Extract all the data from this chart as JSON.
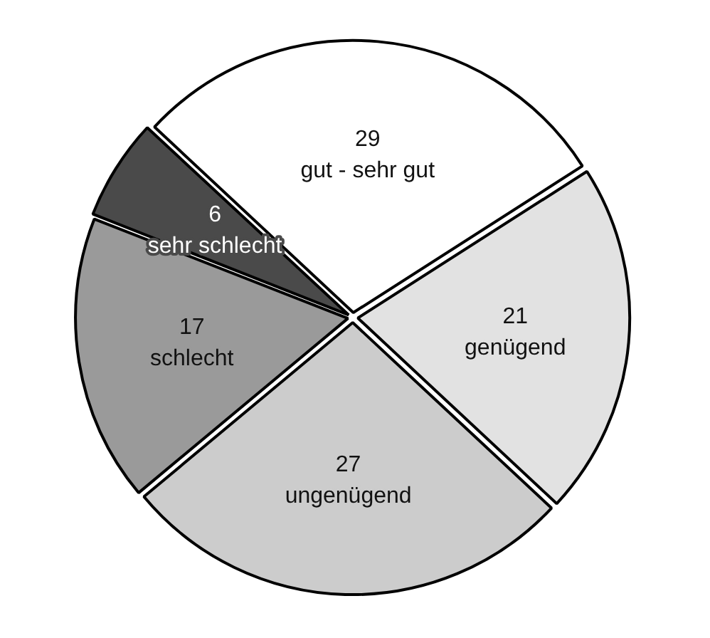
{
  "chart_data": {
    "type": "pie",
    "categories": [
      "gut - sehr gut",
      "genügend",
      "ungenügend",
      "schlecht",
      "sehr schlecht"
    ],
    "values": [
      29,
      21,
      27,
      17,
      6
    ],
    "colors": [
      "#ffffff",
      "#e2e2e2",
      "#cccccc",
      "#9a9a9a",
      "#4a4a4a"
    ],
    "data_labels": true,
    "legend": false
  }
}
